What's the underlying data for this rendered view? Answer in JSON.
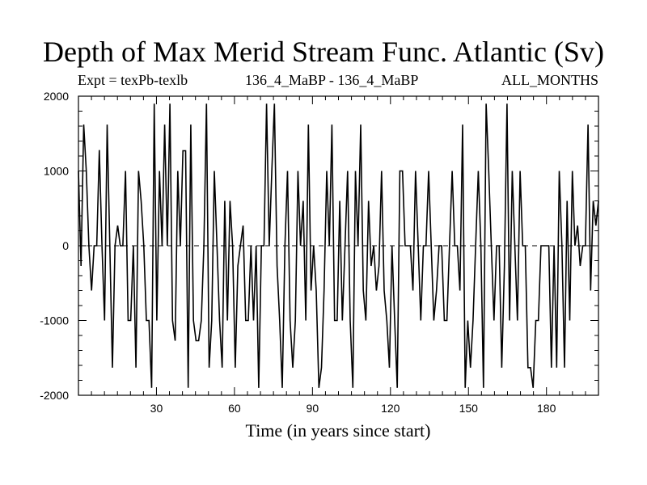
{
  "header": {
    "title": "Depth of Max Merid Stream Func. Atlantic (Sv)",
    "expt": "Expt = texPb-texlb",
    "period": "136_4_MaBP - 136_4_MaBP",
    "season": "ALL_MONTHS"
  },
  "chart_data": {
    "type": "line",
    "title": "Depth of Max Merid Stream Func. Atlantic (Sv)",
    "xlabel": "Time (in years since start)",
    "ylabel": "",
    "xlim": [
      0,
      200
    ],
    "ylim": [
      -2000,
      2000
    ],
    "x_ticks": [
      30,
      60,
      90,
      120,
      150,
      180
    ],
    "y_ticks": [
      -2000,
      -1000,
      0,
      1000,
      2000
    ],
    "grid": false,
    "zero_line": true,
    "series": [
      {
        "values": [
          1000,
          -270,
          1620,
          1000,
          0,
          -600,
          0,
          0,
          1280,
          0,
          -1000,
          1620,
          0,
          -1630,
          0,
          270,
          0,
          0,
          1000,
          -1000,
          -1000,
          0,
          -1630,
          1000,
          600,
          0,
          -1000,
          -1000,
          -1900,
          1900,
          -1000,
          1000,
          0,
          1620,
          0,
          1900,
          -1000,
          -1270,
          1000,
          0,
          1270,
          1270,
          -1900,
          1620,
          -1000,
          -1270,
          -1270,
          -1000,
          0,
          1900,
          -1630,
          -1000,
          1000,
          0,
          -1000,
          -1630,
          600,
          -1000,
          600,
          0,
          -1630,
          -270,
          0,
          270,
          -1000,
          -1000,
          0,
          -1000,
          0,
          -1900,
          0,
          0,
          1900,
          0,
          1000,
          1900,
          -270,
          -1000,
          -1900,
          0,
          1000,
          -1000,
          -1630,
          -1000,
          1000,
          0,
          600,
          -1000,
          1620,
          -600,
          0,
          -600,
          -1900,
          -1630,
          -600,
          1000,
          0,
          1620,
          -1000,
          -1000,
          600,
          -1000,
          0,
          1000,
          -1000,
          -1900,
          1000,
          0,
          1620,
          -600,
          -1000,
          600,
          -270,
          0,
          -600,
          -270,
          1000,
          -600,
          -1000,
          -1630,
          0,
          -1000,
          -1900,
          1000,
          1000,
          0,
          0,
          0,
          -600,
          1000,
          0,
          -1000,
          0,
          0,
          1000,
          0,
          -1000,
          -600,
          0,
          0,
          -1000,
          -1000,
          0,
          1000,
          0,
          0,
          -600,
          1620,
          -1900,
          -1000,
          -1630,
          -1000,
          0,
          1000,
          0,
          -1900,
          1900,
          1000,
          0,
          -1000,
          0,
          0,
          -1630,
          -270,
          1900,
          -1000,
          1000,
          0,
          -1000,
          1000,
          0,
          0,
          -1630,
          -1630,
          -1900,
          -1000,
          -1000,
          0,
          0,
          0,
          0,
          -1630,
          0,
          -1630,
          1000,
          0,
          -1630,
          600,
          -1000,
          1000,
          0,
          270,
          -270,
          0,
          0,
          1620,
          -600,
          600,
          270,
          600
        ]
      }
    ]
  }
}
